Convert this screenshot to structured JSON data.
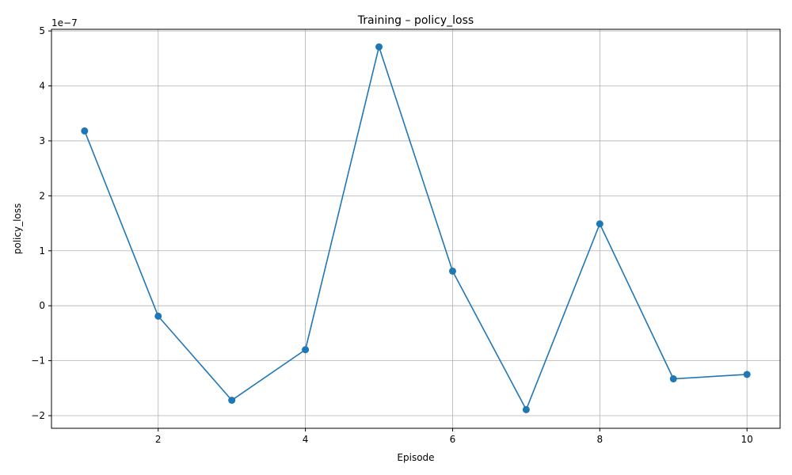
{
  "chart_data": {
    "type": "line",
    "title": "Training – policy_loss",
    "xlabel": "Episode",
    "ylabel": "policy_loss",
    "offset_label": "1e−7",
    "xlim": [
      0.55,
      10.45
    ],
    "ylim": [
      -2.23,
      5.03
    ],
    "x_ticks": [
      2,
      4,
      6,
      8,
      10
    ],
    "x_tick_labels": [
      "2",
      "4",
      "6",
      "8",
      "10"
    ],
    "y_ticks": [
      -2,
      -1,
      0,
      1,
      2,
      3,
      4,
      5
    ],
    "y_tick_labels": [
      "−2",
      "−1",
      "0",
      "1",
      "2",
      "3",
      "4",
      "5"
    ],
    "grid": true,
    "colors": {
      "line": "#1f77b4",
      "grid": "#b0b0b0",
      "axes": "#000000"
    },
    "series": [
      {
        "x": [
          1,
          2,
          3,
          4,
          5,
          6,
          7,
          8,
          9,
          10
        ],
        "y": [
          3.18,
          -0.19,
          -1.72,
          -0.8,
          4.71,
          0.63,
          -1.89,
          1.49,
          -1.33,
          -1.25
        ],
        "y_scale_note": "values ×1e−7"
      }
    ]
  }
}
